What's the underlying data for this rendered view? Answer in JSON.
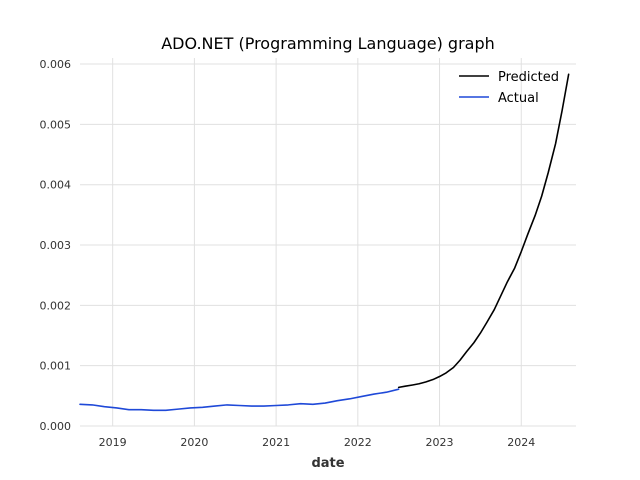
{
  "chart_data": {
    "type": "line",
    "title": "ADO.NET (Programming Language) graph",
    "xlabel": "date",
    "ylabel": "",
    "xlim": [
      2018.6,
      2024.67
    ],
    "ylim": [
      0,
      0.0061
    ],
    "x_ticks": [
      {
        "value": 2019,
        "label": "2019"
      },
      {
        "value": 2020,
        "label": "2020"
      },
      {
        "value": 2021,
        "label": "2021"
      },
      {
        "value": 2022,
        "label": "2022"
      },
      {
        "value": 2023,
        "label": "2023"
      },
      {
        "value": 2024,
        "label": "2024"
      }
    ],
    "y_ticks": [
      {
        "value": 0.0,
        "label": "0.000"
      },
      {
        "value": 0.001,
        "label": "0.001"
      },
      {
        "value": 0.002,
        "label": "0.002"
      },
      {
        "value": 0.003,
        "label": "0.003"
      },
      {
        "value": 0.004,
        "label": "0.004"
      },
      {
        "value": 0.005,
        "label": "0.005"
      },
      {
        "value": 0.006,
        "label": "0.006"
      }
    ],
    "grid": true,
    "legend": "top-right",
    "series": [
      {
        "name": "Predicted",
        "color": "#000000",
        "points": [
          [
            2022.5,
            0.00064
          ],
          [
            2022.58,
            0.00066
          ],
          [
            2022.67,
            0.00068
          ],
          [
            2022.75,
            0.0007
          ],
          [
            2022.83,
            0.00073
          ],
          [
            2022.92,
            0.00077
          ],
          [
            2023.0,
            0.00082
          ],
          [
            2023.08,
            0.00088
          ],
          [
            2023.17,
            0.00097
          ],
          [
            2023.25,
            0.00109
          ],
          [
            2023.33,
            0.00123
          ],
          [
            2023.42,
            0.00138
          ],
          [
            2023.5,
            0.00154
          ],
          [
            2023.58,
            0.00172
          ],
          [
            2023.67,
            0.00193
          ],
          [
            2023.75,
            0.00216
          ],
          [
            2023.83,
            0.00239
          ],
          [
            2023.92,
            0.00262
          ],
          [
            2024.0,
            0.00289
          ],
          [
            2024.08,
            0.00318
          ],
          [
            2024.17,
            0.00349
          ],
          [
            2024.25,
            0.00381
          ],
          [
            2024.33,
            0.0042
          ],
          [
            2024.42,
            0.00468
          ],
          [
            2024.5,
            0.00523
          ],
          [
            2024.58,
            0.00583
          ]
        ]
      },
      {
        "name": "Actual",
        "color": "#1f49d8",
        "points": [
          [
            2018.6,
            0.00036
          ],
          [
            2018.75,
            0.00035
          ],
          [
            2018.9,
            0.00032
          ],
          [
            2019.05,
            0.0003
          ],
          [
            2019.2,
            0.00027
          ],
          [
            2019.35,
            0.00027
          ],
          [
            2019.5,
            0.00026
          ],
          [
            2019.65,
            0.00026
          ],
          [
            2019.8,
            0.00028
          ],
          [
            2019.95,
            0.0003
          ],
          [
            2020.1,
            0.00031
          ],
          [
            2020.25,
            0.00033
          ],
          [
            2020.4,
            0.00035
          ],
          [
            2020.55,
            0.00034
          ],
          [
            2020.7,
            0.00033
          ],
          [
            2020.85,
            0.00033
          ],
          [
            2021.0,
            0.00034
          ],
          [
            2021.15,
            0.00035
          ],
          [
            2021.3,
            0.00037
          ],
          [
            2021.45,
            0.00036
          ],
          [
            2021.6,
            0.00038
          ],
          [
            2021.75,
            0.00042
          ],
          [
            2021.9,
            0.00045
          ],
          [
            2022.05,
            0.00049
          ],
          [
            2022.2,
            0.00053
          ],
          [
            2022.35,
            0.00056
          ],
          [
            2022.5,
            0.00061
          ]
        ]
      }
    ]
  }
}
